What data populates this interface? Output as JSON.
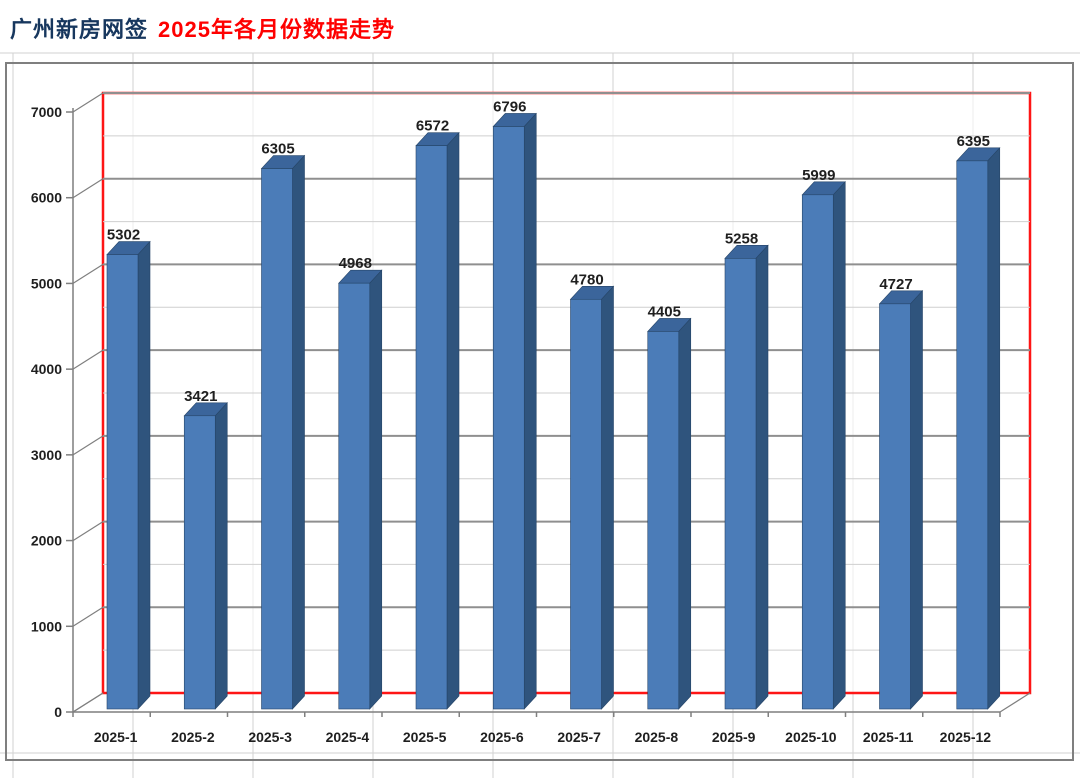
{
  "title": {
    "part1": "广州新房网签",
    "part2": "2025年各月份数据走势"
  },
  "chart_data": {
    "type": "bar",
    "style": "3d-column",
    "title": "广州新房网签 2025年各月份数据走势",
    "categories": [
      "2025-1",
      "2025-2",
      "2025-3",
      "2025-4",
      "2025-5",
      "2025-6",
      "2025-7",
      "2025-8",
      "2025-9",
      "2025-10",
      "2025-11",
      "2025-12"
    ],
    "values": [
      5302,
      3421,
      6305,
      4968,
      6572,
      6796,
      4780,
      4405,
      5258,
      5999,
      4727,
      6395
    ],
    "data_labels_shown": true,
    "xlabel": "",
    "ylabel": "",
    "ylim": [
      0,
      7000
    ],
    "y_major_step": 1000,
    "y_minor_step": 500,
    "y_tick_labels": [
      "0",
      "1000",
      "2000",
      "3000",
      "4000",
      "5000",
      "6000",
      "7000"
    ],
    "grid": true,
    "legend_position": "none"
  },
  "colors": {
    "title_navy": "#17375e",
    "title_red": "#fe0000",
    "bar_front": "#4b7cb8",
    "bar_top": "#3b659b",
    "bar_side": "#2f547d",
    "bar_edge": "#264568",
    "wall_border_red": "#fe1515",
    "gridline_major": "#8f8f8f",
    "gridline_minor": "#cfcfcf",
    "axis_line": "#7f7f7f",
    "frame_border": "#7f7f7f",
    "sheet_grid": "#d2d2d2",
    "label_text": "#1f1f1f"
  }
}
